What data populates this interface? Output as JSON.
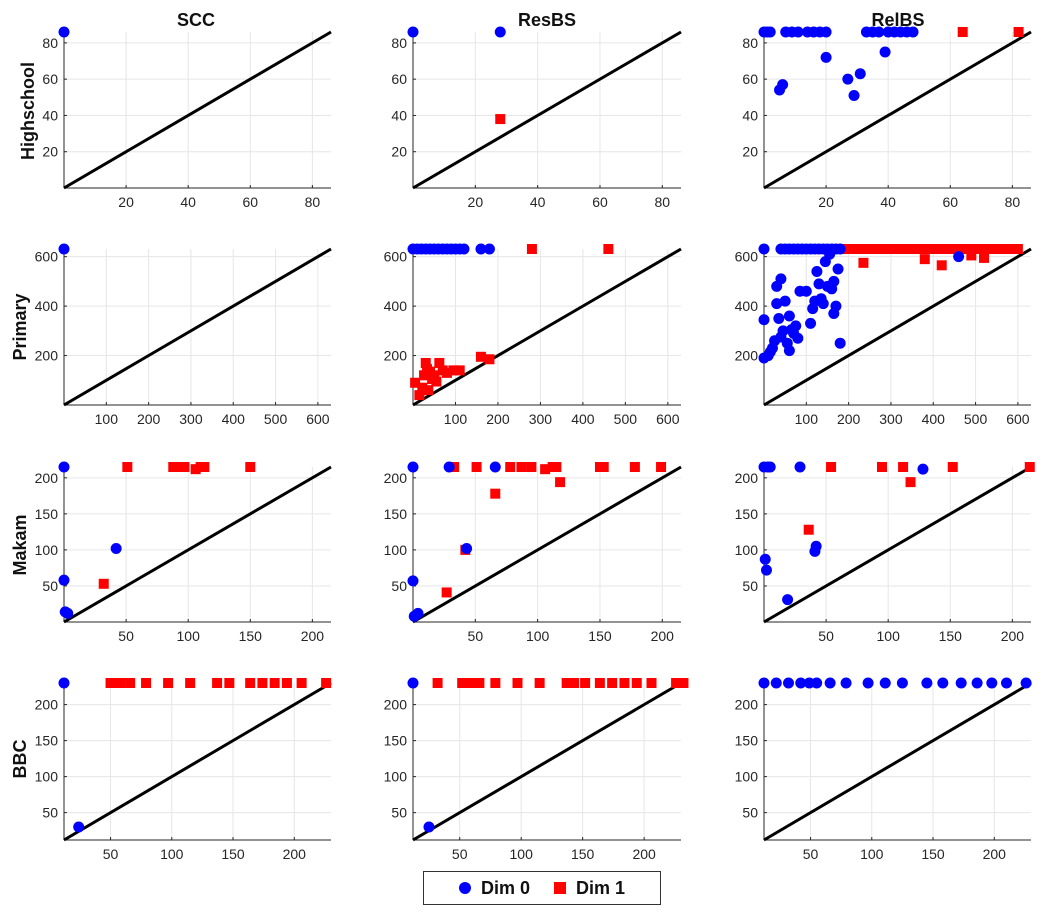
{
  "colors": {
    "dim0": "#0000ff",
    "dim1": "#ff0000",
    "diagonal": "#000000",
    "grid": "#e6e6e6",
    "axis": "#262626"
  },
  "legend": {
    "entries": [
      {
        "label": "Dim 0",
        "marker": "circle",
        "color": "#0000ff"
      },
      {
        "label": "Dim 1",
        "marker": "square",
        "color": "#ff0000"
      }
    ]
  },
  "column_titles": [
    "SCC",
    "ResBS",
    "RelBS"
  ],
  "row_titles": [
    "Highschool",
    "Primary",
    "Makam",
    "BBC"
  ],
  "chart_data": [
    {
      "type": "scatter",
      "row": 0,
      "col": 0,
      "dataset": "Highschool",
      "method": "SCC",
      "xlim": [
        0,
        86
      ],
      "ylim": [
        0,
        86
      ],
      "xticks": [
        20,
        40,
        60,
        80
      ],
      "yticks": [
        20,
        40,
        60,
        80
      ],
      "tick_labels": [
        "20",
        "40",
        "60",
        "80"
      ],
      "diagonal": true,
      "dim0": [
        [
          0,
          86
        ]
      ],
      "dim1": []
    },
    {
      "type": "scatter",
      "row": 0,
      "col": 1,
      "dataset": "Highschool",
      "method": "ResBS",
      "xlim": [
        0,
        86
      ],
      "ylim": [
        0,
        86
      ],
      "xticks": [
        20,
        40,
        60,
        80
      ],
      "yticks": [
        20,
        40,
        60,
        80
      ],
      "tick_labels": [
        "20",
        "40",
        "60",
        "80"
      ],
      "diagonal": true,
      "dim0": [
        [
          0,
          86
        ],
        [
          28,
          86
        ]
      ],
      "dim1": [
        [
          28,
          38
        ]
      ]
    },
    {
      "type": "scatter",
      "row": 0,
      "col": 2,
      "dataset": "Highschool",
      "method": "RelBS",
      "xlim": [
        0,
        86
      ],
      "ylim": [
        0,
        86
      ],
      "xticks": [
        20,
        40,
        60,
        80
      ],
      "yticks": [
        20,
        40,
        60,
        80
      ],
      "tick_labels": [
        "20",
        "40",
        "60",
        "80"
      ],
      "diagonal": true,
      "dim0": [
        [
          0,
          86
        ],
        [
          1,
          86
        ],
        [
          2,
          86
        ],
        [
          7,
          86
        ],
        [
          9,
          86
        ],
        [
          11,
          86
        ],
        [
          14,
          86
        ],
        [
          16,
          86
        ],
        [
          18,
          86
        ],
        [
          20,
          86
        ],
        [
          33,
          86
        ],
        [
          35,
          86
        ],
        [
          37,
          86
        ],
        [
          40,
          86
        ],
        [
          42,
          86
        ],
        [
          44,
          86
        ],
        [
          46,
          86
        ],
        [
          48,
          86
        ],
        [
          5,
          54
        ],
        [
          6,
          57
        ],
        [
          20,
          72
        ],
        [
          27,
          60
        ],
        [
          29,
          51
        ],
        [
          31,
          63
        ],
        [
          39,
          75
        ]
      ],
      "dim1": [
        [
          64,
          86
        ],
        [
          82,
          86
        ]
      ]
    },
    {
      "type": "scatter",
      "row": 1,
      "col": 0,
      "dataset": "Primary",
      "method": "SCC",
      "xlim": [
        0,
        631
      ],
      "ylim": [
        0,
        631
      ],
      "xticks": [
        100,
        200,
        300,
        400,
        500,
        600
      ],
      "yticks": [
        200,
        400,
        600
      ],
      "tick_labels": [
        "100",
        "200",
        "300",
        "400",
        "500",
        "600"
      ],
      "diagonal": true,
      "dim0": [
        [
          0,
          631
        ]
      ],
      "dim1": []
    },
    {
      "type": "scatter",
      "row": 1,
      "col": 1,
      "dataset": "Primary",
      "method": "ResBS",
      "xlim": [
        0,
        631
      ],
      "ylim": [
        0,
        631
      ],
      "xticks": [
        100,
        200,
        300,
        400,
        500,
        600
      ],
      "yticks": [
        200,
        400,
        600
      ],
      "tick_labels": [
        "100",
        "200",
        "300",
        "400",
        "500",
        "600"
      ],
      "diagonal": true,
      "dim0": [
        [
          0,
          631
        ],
        [
          10,
          631
        ],
        [
          20,
          631
        ],
        [
          30,
          631
        ],
        [
          40,
          631
        ],
        [
          50,
          631
        ],
        [
          60,
          631
        ],
        [
          70,
          631
        ],
        [
          80,
          631
        ],
        [
          90,
          631
        ],
        [
          100,
          631
        ],
        [
          110,
          631
        ],
        [
          120,
          631
        ],
        [
          160,
          631
        ],
        [
          180,
          631
        ]
      ],
      "dim1": [
        [
          280,
          631
        ],
        [
          460,
          631
        ],
        [
          5,
          90
        ],
        [
          15,
          40
        ],
        [
          22,
          70
        ],
        [
          26,
          120
        ],
        [
          30,
          170
        ],
        [
          33,
          145
        ],
        [
          36,
          60
        ],
        [
          40,
          135
        ],
        [
          45,
          105
        ],
        [
          50,
          120
        ],
        [
          55,
          95
        ],
        [
          62,
          170
        ],
        [
          70,
          140
        ],
        [
          80,
          130
        ],
        [
          95,
          140
        ],
        [
          110,
          140
        ],
        [
          160,
          195
        ],
        [
          180,
          185
        ]
      ]
    },
    {
      "type": "scatter",
      "row": 1,
      "col": 2,
      "dataset": "Primary",
      "method": "RelBS",
      "xlim": [
        0,
        631
      ],
      "ylim": [
        0,
        631
      ],
      "xticks": [
        100,
        200,
        300,
        400,
        500,
        600
      ],
      "yticks": [
        200,
        400,
        600
      ],
      "tick_labels": [
        "100",
        "200",
        "300",
        "400",
        "500",
        "600"
      ],
      "diagonal": true,
      "dim0": [
        [
          0,
          631
        ],
        [
          40,
          631
        ],
        [
          50,
          631
        ],
        [
          60,
          631
        ],
        [
          70,
          631
        ],
        [
          80,
          631
        ],
        [
          90,
          631
        ],
        [
          100,
          631
        ],
        [
          110,
          631
        ],
        [
          120,
          631
        ],
        [
          130,
          631
        ],
        [
          140,
          631
        ],
        [
          150,
          631
        ],
        [
          160,
          631
        ],
        [
          170,
          631
        ],
        [
          180,
          631
        ],
        [
          0,
          345
        ],
        [
          0,
          190
        ],
        [
          10,
          200
        ],
        [
          15,
          215
        ],
        [
          20,
          230
        ],
        [
          25,
          260
        ],
        [
          30,
          410
        ],
        [
          30,
          480
        ],
        [
          35,
          350
        ],
        [
          40,
          510
        ],
        [
          40,
          275
        ],
        [
          45,
          300
        ],
        [
          50,
          420
        ],
        [
          55,
          250
        ],
        [
          60,
          220
        ],
        [
          60,
          360
        ],
        [
          65,
          305
        ],
        [
          70,
          290
        ],
        [
          75,
          320
        ],
        [
          80,
          270
        ],
        [
          85,
          460
        ],
        [
          100,
          460
        ],
        [
          110,
          330
        ],
        [
          115,
          390
        ],
        [
          120,
          420
        ],
        [
          125,
          540
        ],
        [
          130,
          490
        ],
        [
          135,
          430
        ],
        [
          140,
          410
        ],
        [
          145,
          580
        ],
        [
          150,
          480
        ],
        [
          155,
          610
        ],
        [
          160,
          470
        ],
        [
          165,
          370
        ],
        [
          170,
          400
        ],
        [
          175,
          550
        ],
        [
          180,
          250
        ],
        [
          165,
          500
        ],
        [
          460,
          600
        ]
      ],
      "dim1": [
        [
          190,
          631
        ],
        [
          200,
          631
        ],
        [
          210,
          631
        ],
        [
          220,
          631
        ],
        [
          230,
          631
        ],
        [
          250,
          631
        ],
        [
          260,
          631
        ],
        [
          280,
          631
        ],
        [
          300,
          631
        ],
        [
          310,
          631
        ],
        [
          330,
          631
        ],
        [
          350,
          631
        ],
        [
          360,
          631
        ],
        [
          380,
          631
        ],
        [
          400,
          631
        ],
        [
          420,
          631
        ],
        [
          430,
          631
        ],
        [
          450,
          631
        ],
        [
          470,
          631
        ],
        [
          490,
          631
        ],
        [
          500,
          631
        ],
        [
          520,
          631
        ],
        [
          540,
          631
        ],
        [
          560,
          631
        ],
        [
          570,
          631
        ],
        [
          580,
          631
        ],
        [
          590,
          631
        ],
        [
          600,
          631
        ],
        [
          235,
          575
        ],
        [
          380,
          590
        ],
        [
          420,
          565
        ],
        [
          490,
          605
        ],
        [
          520,
          595
        ]
      ]
    },
    {
      "type": "scatter",
      "row": 2,
      "col": 0,
      "dataset": "Makam",
      "method": "SCC",
      "xlim": [
        0,
        215
      ],
      "ylim": [
        0,
        215
      ],
      "xticks": [
        50,
        100,
        150,
        200
      ],
      "yticks": [
        50,
        100,
        150,
        200
      ],
      "tick_labels": [
        "50",
        "100",
        "150",
        "200"
      ],
      "diagonal": true,
      "dim0": [
        [
          0,
          215
        ],
        [
          0,
          58
        ],
        [
          1,
          14
        ],
        [
          3,
          12
        ],
        [
          42,
          102
        ]
      ],
      "dim1": [
        [
          32,
          53
        ],
        [
          51,
          215
        ],
        [
          88,
          215
        ],
        [
          92,
          215
        ],
        [
          97,
          215
        ],
        [
          106,
          212
        ],
        [
          110,
          215
        ],
        [
          113,
          215
        ],
        [
          150,
          215
        ]
      ]
    },
    {
      "type": "scatter",
      "row": 2,
      "col": 1,
      "dataset": "Makam",
      "method": "ResBS",
      "xlim": [
        0,
        215
      ],
      "ylim": [
        0,
        215
      ],
      "xticks": [
        50,
        100,
        150,
        200
      ],
      "yticks": [
        50,
        100,
        150,
        200
      ],
      "tick_labels": [
        "50",
        "100",
        "150",
        "200"
      ],
      "diagonal": true,
      "dim0": [
        [
          0,
          215
        ],
        [
          0,
          57
        ],
        [
          1,
          8
        ],
        [
          4,
          12
        ],
        [
          29,
          215
        ],
        [
          43,
          102
        ],
        [
          66,
          215
        ]
      ],
      "dim1": [
        [
          27,
          41
        ],
        [
          33,
          215
        ],
        [
          42,
          100
        ],
        [
          51,
          215
        ],
        [
          66,
          178
        ],
        [
          78,
          215
        ],
        [
          87,
          215
        ],
        [
          95,
          215
        ],
        [
          106,
          212
        ],
        [
          112,
          215
        ],
        [
          115,
          215
        ],
        [
          118,
          194
        ],
        [
          150,
          215
        ],
        [
          153,
          215
        ],
        [
          178,
          215
        ],
        [
          199,
          215
        ]
      ]
    },
    {
      "type": "scatter",
      "row": 2,
      "col": 2,
      "dataset": "Makam",
      "method": "RelBS",
      "xlim": [
        0,
        215
      ],
      "ylim": [
        0,
        215
      ],
      "xticks": [
        50,
        100,
        150,
        200
      ],
      "yticks": [
        50,
        100,
        150,
        200
      ],
      "tick_labels": [
        "50",
        "100",
        "150",
        "200"
      ],
      "diagonal": true,
      "dim0": [
        [
          0,
          215
        ],
        [
          3,
          215
        ],
        [
          5,
          215
        ],
        [
          1,
          87
        ],
        [
          2,
          72
        ],
        [
          19,
          31
        ],
        [
          29,
          215
        ],
        [
          41,
          98
        ],
        [
          42,
          105
        ],
        [
          128,
          212
        ]
      ],
      "dim1": [
        [
          36,
          128
        ],
        [
          54,
          215
        ],
        [
          95,
          215
        ],
        [
          112,
          215
        ],
        [
          118,
          194
        ],
        [
          152,
          215
        ],
        [
          214,
          215
        ]
      ]
    },
    {
      "type": "scatter",
      "row": 3,
      "col": 0,
      "dataset": "BBC",
      "method": "SCC",
      "xlim": [
        12,
        230
      ],
      "ylim": [
        12,
        230
      ],
      "xticks": [
        50,
        100,
        150,
        200
      ],
      "yticks": [
        50,
        100,
        150,
        200
      ],
      "tick_labels": [
        "50",
        "100",
        "150",
        "200"
      ],
      "diagonal": true,
      "dim0": [
        [
          12,
          230
        ],
        [
          24,
          30
        ]
      ],
      "dim1": [
        [
          50,
          230
        ],
        [
          55,
          230
        ],
        [
          58,
          230
        ],
        [
          66,
          230
        ],
        [
          79,
          230
        ],
        [
          97,
          230
        ],
        [
          115,
          230
        ],
        [
          137,
          230
        ],
        [
          147,
          230
        ],
        [
          164,
          230
        ],
        [
          174,
          230
        ],
        [
          184,
          230
        ],
        [
          194,
          230
        ],
        [
          206,
          230
        ],
        [
          226,
          230
        ]
      ]
    },
    {
      "type": "scatter",
      "row": 3,
      "col": 1,
      "dataset": "BBC",
      "method": "ResBS",
      "xlim": [
        12,
        230
      ],
      "ylim": [
        12,
        230
      ],
      "xticks": [
        50,
        100,
        150,
        200
      ],
      "yticks": [
        50,
        100,
        150,
        200
      ],
      "tick_labels": [
        "50",
        "100",
        "150",
        "200"
      ],
      "diagonal": true,
      "dim0": [
        [
          12,
          230
        ],
        [
          25,
          30
        ]
      ],
      "dim1": [
        [
          32,
          230
        ],
        [
          52,
          230
        ],
        [
          55,
          230
        ],
        [
          58,
          230
        ],
        [
          66,
          230
        ],
        [
          79,
          230
        ],
        [
          97,
          230
        ],
        [
          115,
          230
        ],
        [
          137,
          230
        ],
        [
          143,
          230
        ],
        [
          152,
          230
        ],
        [
          164,
          230
        ],
        [
          174,
          230
        ],
        [
          184,
          230
        ],
        [
          194,
          230
        ],
        [
          206,
          230
        ],
        [
          226,
          230
        ],
        [
          232,
          230
        ]
      ]
    },
    {
      "type": "scatter",
      "row": 3,
      "col": 2,
      "dataset": "BBC",
      "method": "RelBS",
      "xlim": [
        12,
        230
      ],
      "ylim": [
        12,
        230
      ],
      "xticks": [
        50,
        100,
        150,
        200
      ],
      "yticks": [
        50,
        100,
        150,
        200
      ],
      "tick_labels": [
        "50",
        "100",
        "150",
        "200"
      ],
      "diagonal": true,
      "dim0": [
        [
          12,
          230
        ],
        [
          22,
          230
        ],
        [
          32,
          230
        ],
        [
          42,
          230
        ],
        [
          49,
          230
        ],
        [
          55,
          230
        ],
        [
          66,
          230
        ],
        [
          79,
          230
        ],
        [
          97,
          230
        ],
        [
          111,
          230
        ],
        [
          125,
          230
        ],
        [
          145,
          230
        ],
        [
          158,
          230
        ],
        [
          173,
          230
        ],
        [
          186,
          230
        ],
        [
          198,
          230
        ],
        [
          210,
          230
        ],
        [
          226,
          230
        ]
      ],
      "dim1": []
    }
  ]
}
